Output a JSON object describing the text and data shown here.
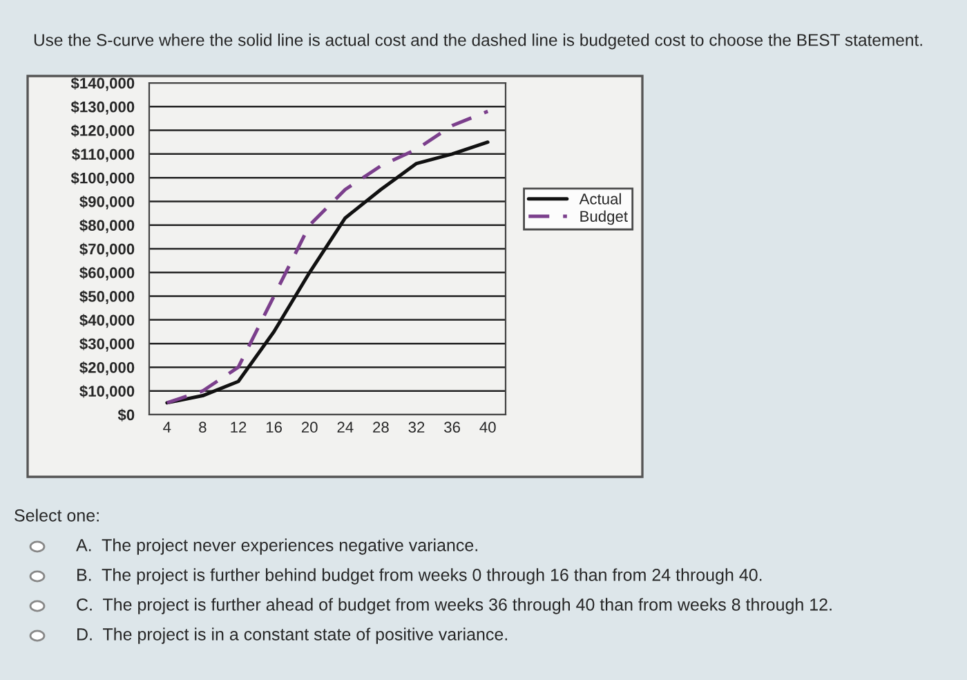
{
  "chart_data": {
    "type": "line",
    "title": "Use the S-curve where the solid line is actual cost and the dashed line is budgeted cost to choose the BEST statement.",
    "categories": [
      "4",
      "8",
      "12",
      "16",
      "20",
      "24",
      "28",
      "32",
      "36",
      "40"
    ],
    "series": [
      {
        "name": "Actual",
        "color": "#111111",
        "line_style": "solid",
        "values": [
          5000,
          8000,
          14000,
          35000,
          60000,
          83000,
          95000,
          106000,
          110000,
          115000
        ]
      },
      {
        "name": "Budget",
        "color": "#7b3f8c",
        "line_style": "dashed",
        "values": [
          5000,
          10000,
          20000,
          50000,
          80000,
          95000,
          105000,
          112000,
          122000,
          128000
        ]
      }
    ],
    "ylim": [
      0,
      140000
    ],
    "yticks": [
      {
        "value": 0,
        "label": "$0"
      },
      {
        "value": 10000,
        "label": "$10,000"
      },
      {
        "value": 20000,
        "label": "$20,000"
      },
      {
        "value": 30000,
        "label": "$30,000"
      },
      {
        "value": 40000,
        "label": "$40,000"
      },
      {
        "value": 50000,
        "label": "$50,000"
      },
      {
        "value": 60000,
        "label": "$60,000"
      },
      {
        "value": 70000,
        "label": "$70,000"
      },
      {
        "value": 80000,
        "label": "$80,000"
      },
      {
        "value": 90000,
        "label": "$90,000"
      },
      {
        "value": 100000,
        "label": "$100,000"
      },
      {
        "value": 110000,
        "label": "$110,000"
      },
      {
        "value": 120000,
        "label": "$120,000"
      },
      {
        "value": 130000,
        "label": "$130,000"
      },
      {
        "value": 140000,
        "label": "$140,000"
      }
    ],
    "grid": "y",
    "legend": "right",
    "marker": "none",
    "annotations": [
      "Select one:",
      "A.  The project never experiences negative variance.",
      "B.  The project is further behind budget from weeks 0 through 16 than from 24 through 40.",
      "C.  The project is further ahead of budget from weeks 36 through 40 than from weeks 8 through 12.",
      "D.  The project is in a constant state of positive variance."
    ]
  }
}
